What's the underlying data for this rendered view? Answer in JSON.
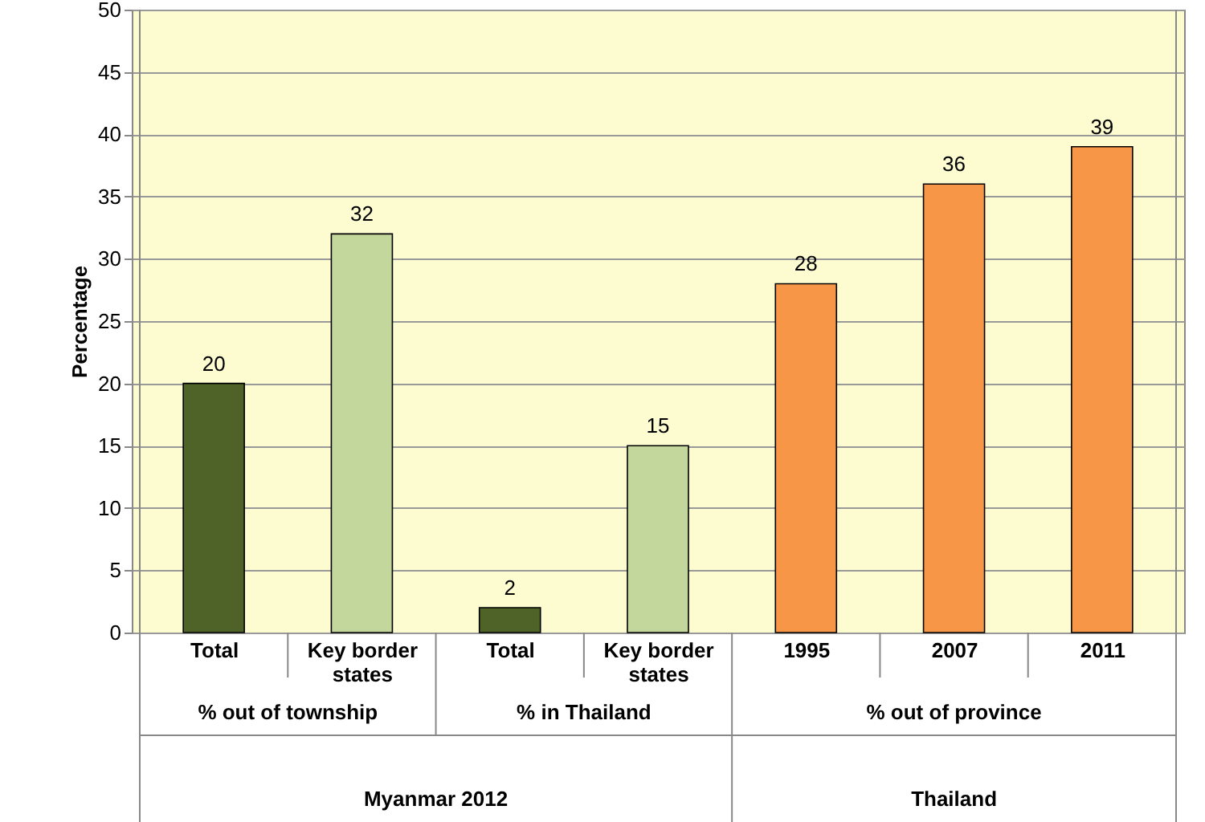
{
  "chart_data": {
    "type": "bar",
    "ylabel": "Percentage",
    "categories": [
      "Total",
      "Key border states",
      "Total",
      "Key border states",
      "1995",
      "2007",
      "2011"
    ],
    "values": [
      20,
      32,
      2,
      15,
      28,
      36,
      39
    ],
    "colors": [
      "#4f6228",
      "#c3d69b",
      "#4f6228",
      "#c3d69b",
      "#f79646",
      "#f79646",
      "#f79646"
    ],
    "ylim": [
      0,
      50
    ],
    "yticks": [
      0,
      5,
      10,
      15,
      20,
      25,
      30,
      35,
      40,
      45,
      50
    ],
    "grid": "y",
    "data_labels": true,
    "annotations": [
      "% out of township",
      "% in Thailand",
      "% out of province",
      "Myanmar 2012",
      "Thailand"
    ]
  }
}
